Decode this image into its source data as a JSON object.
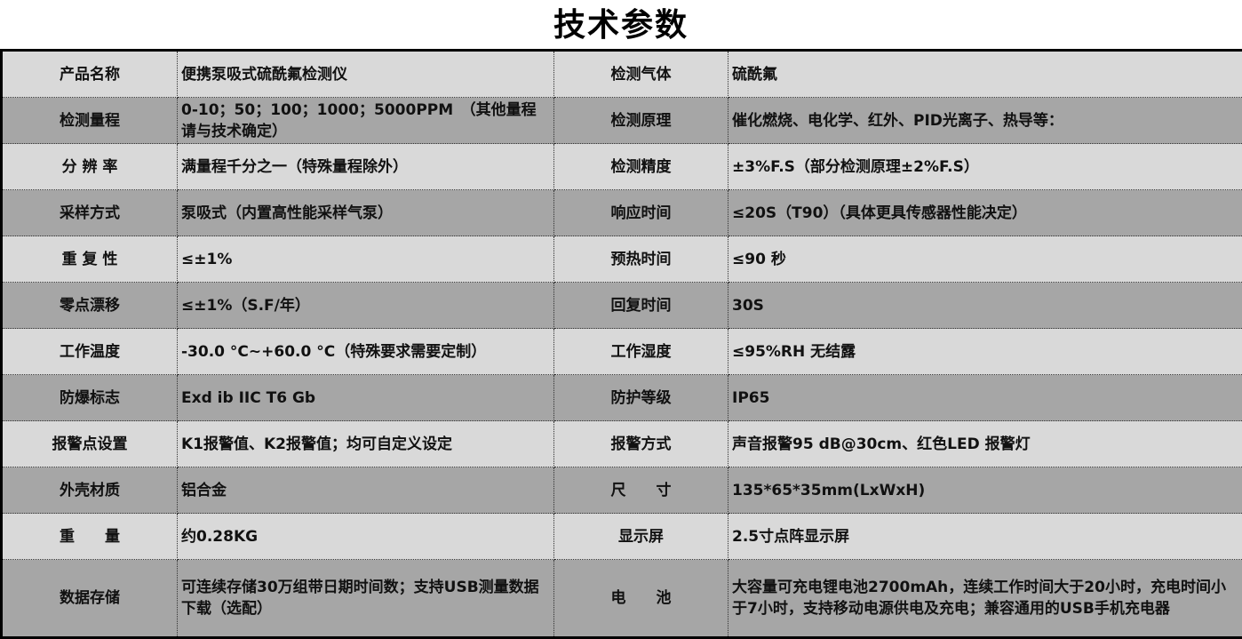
{
  "title": "技术参数",
  "rows": [
    {
      "l1": "产品名称",
      "v1": "便携泵吸式硫酰氟检测仪",
      "l2": "检测气体",
      "v2": "硫酰氟"
    },
    {
      "l1": "检测量程",
      "v1": "0-10；50；100；1000；5000PPM　（其他量程请与技术确定）",
      "l2": "检测原理",
      "v2": "催化燃烧、电化学、红外、PID光离子、热导等："
    },
    {
      "l1": "分 辨 率",
      "v1": "满量程千分之一（特殊量程除外）",
      "l2": "检测精度",
      "v2": "±3%F.S（部分检测原理±2%F.S）"
    },
    {
      "l1": "采样方式",
      "v1": "泵吸式（内置高性能采样气泵）",
      "l2": "响应时间",
      "v2": "≤20S（T90）（具体更具传感器性能决定）"
    },
    {
      "l1": "重 复 性",
      "v1": "≤±1%",
      "l2": "预热时间",
      "v2": "≤90 秒"
    },
    {
      "l1": "零点漂移",
      "v1": "≤±1%（S.F/年）",
      "l2": "回复时间",
      "v2": "30S"
    },
    {
      "l1": "工作温度",
      "v1": "-30.0 °C~+60.0 °C（特殊要求需要定制）",
      "l2": "工作湿度",
      "v2": "≤95%RH 无结露"
    },
    {
      "l1": "防爆标志",
      "v1": "Exd ib IIC T6 Gb",
      "l2": "防护等级",
      "v2": "IP65"
    },
    {
      "l1": "报警点设置",
      "v1": "K1报警值、K2报警值；均可自定义设定",
      "l2": "报警方式",
      "v2": "声音报警95 dB@30cm、红色LED 报警灯"
    },
    {
      "l1": "外壳材质",
      "v1": "铝合金",
      "l2": "尺　　寸",
      "v2": "135*65*35mm(LxWxH)"
    },
    {
      "l1": "重　　量",
      "v1": "约0.28KG",
      "l2": "显示屏",
      "v2": "2.5寸点阵显示屏"
    },
    {
      "l1": "数据存储",
      "v1": "可连续存储30万组带日期时间数；支持USB测量数据下载（选配）",
      "l2": "电　　池",
      "v2": "大容量可充电锂电池2700mAh，连续工作时间大于20小时，充电时间小于7小时，支持移动电源供电及充电；兼容通用的USB手机充电器"
    }
  ],
  "colors": {
    "light_row": "#d9d9d9",
    "dark_row": "#a6a6a6"
  }
}
